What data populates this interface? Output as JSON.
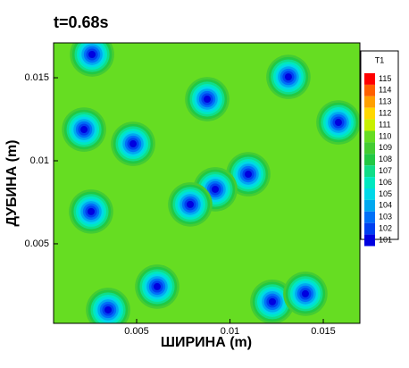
{
  "chart_data": {
    "type": "contour",
    "title": "t=0.68s",
    "x_label": "ШИРИНА (m)",
    "y_label": "ДУБИНА (m)",
    "xlim": [
      0.00055,
      0.01696
    ],
    "ylim": [
      0.00021,
      0.0171
    ],
    "xticks": [
      0.005,
      0.01,
      0.015
    ],
    "yticks": [
      0.005,
      0.01,
      0.015
    ],
    "field_value": 110,
    "legend_title": "T1",
    "levels": [
      115,
      114,
      113,
      112,
      111,
      110,
      109,
      108,
      107,
      106,
      105,
      104,
      103,
      102,
      101
    ],
    "colors": [
      "#ff0000",
      "#ff6000",
      "#ffa000",
      "#ffd800",
      "#c8f000",
      "#66dd22",
      "#44cc33",
      "#22c844",
      "#11dd88",
      "#00e8c0",
      "#00d8e8",
      "#00a8f0",
      "#0070f8",
      "#0040f0",
      "#0000e0"
    ],
    "points": [
      {
        "x": 0.00261,
        "y": 0.0164,
        "value": 101
      },
      {
        "x": 0.01313,
        "y": 0.01505,
        "value": 101
      },
      {
        "x": 0.00878,
        "y": 0.01371,
        "value": 101
      },
      {
        "x": 0.01581,
        "y": 0.01231,
        "value": 101
      },
      {
        "x": 0.00218,
        "y": 0.01188,
        "value": 101
      },
      {
        "x": 0.00481,
        "y": 0.01102,
        "value": 101
      },
      {
        "x": 0.01098,
        "y": 0.00919,
        "value": 101
      },
      {
        "x": 0.00921,
        "y": 0.00828,
        "value": 101
      },
      {
        "x": 0.00787,
        "y": 0.00737,
        "value": 101
      },
      {
        "x": 0.00256,
        "y": 0.00694,
        "value": 101
      },
      {
        "x": 0.0061,
        "y": 0.00242,
        "value": 101
      },
      {
        "x": 0.01227,
        "y": 0.00151,
        "value": 101
      },
      {
        "x": 0.01404,
        "y": 0.00199,
        "value": 101
      },
      {
        "x": 0.00347,
        "y": 0.00102,
        "value": 101
      }
    ]
  }
}
